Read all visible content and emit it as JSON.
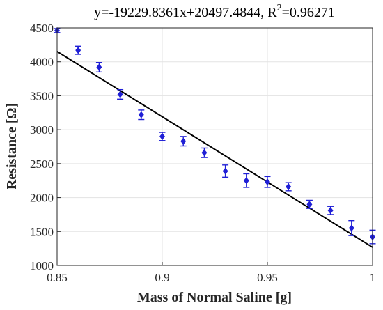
{
  "chart_data": {
    "type": "scatter",
    "title": "y=-19229.8361x+20497.4844, R",
    "title_sup": "2",
    "title_tail": "=0.96271",
    "xlabel": "Mass of Normal Saline [g]",
    "ylabel": "Resistance [Ω]",
    "xlim": [
      0.85,
      1.0
    ],
    "ylim": [
      1000,
      4500
    ],
    "xticks": [
      0.85,
      0.9,
      0.95,
      1.0
    ],
    "xtick_labels": [
      "0.85",
      "0.9",
      "0.95",
      "1"
    ],
    "yticks": [
      1000,
      1500,
      2000,
      2500,
      3000,
      3500,
      4000,
      4500
    ],
    "ytick_labels": [
      "1000",
      "1500",
      "2000",
      "2500",
      "3000",
      "3500",
      "4000",
      "4500"
    ],
    "grid": true,
    "series": [
      {
        "x": [
          0.85,
          0.86,
          0.87,
          0.88,
          0.89,
          0.9,
          0.91,
          0.92,
          0.93,
          0.94,
          0.95,
          0.96,
          0.97,
          0.98,
          0.99,
          1.0
        ],
        "y": [
          4460,
          4170,
          3920,
          3520,
          3220,
          2900,
          2830,
          2660,
          2390,
          2250,
          2230,
          2160,
          1900,
          1810,
          1550,
          1420
        ],
        "error": [
          30,
          60,
          70,
          70,
          70,
          60,
          70,
          70,
          90,
          100,
          80,
          60,
          60,
          60,
          110,
          100
        ],
        "marker_color": "#1f1fd6"
      }
    ],
    "fit_line": {
      "slope": -19229.8361,
      "intercept": 20497.4844,
      "color": "#000000"
    }
  }
}
